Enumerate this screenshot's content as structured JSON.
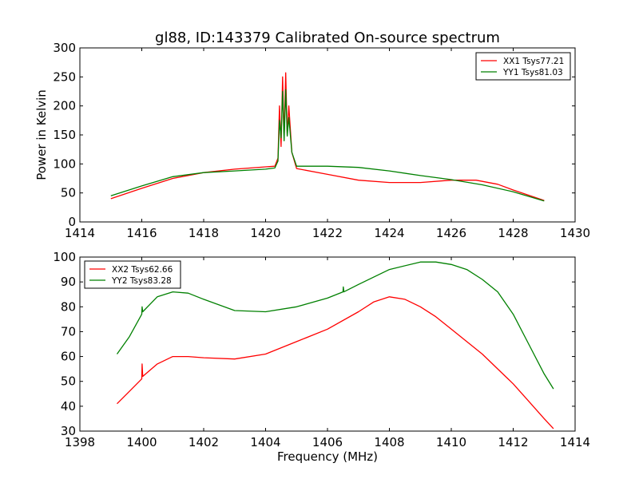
{
  "chart_data": [
    {
      "type": "line",
      "title": "gl88, ID:143379 Calibrated On-source spectrum",
      "xlabel": "",
      "ylabel": "Power in Kelvin",
      "xlim": [
        1414,
        1430
      ],
      "ylim": [
        0,
        300
      ],
      "xticks": [
        "1414",
        "1416",
        "1418",
        "1420",
        "1422",
        "1424",
        "1426",
        "1428",
        "1430"
      ],
      "yticks": [
        "0",
        "50",
        "100",
        "150",
        "200",
        "250",
        "300"
      ],
      "legend_position": "top-right",
      "grid": false,
      "series": [
        {
          "name": "XX1 Tsys77.21",
          "color": "#ff0000",
          "x": [
            1415,
            1416,
            1417,
            1418,
            1419,
            1420,
            1420.3,
            1420.4,
            1420.45,
            1420.5,
            1420.55,
            1420.6,
            1420.65,
            1420.7,
            1420.75,
            1420.85,
            1421,
            1422,
            1423,
            1424,
            1425,
            1426,
            1426.8,
            1427.5,
            1428,
            1429
          ],
          "y": [
            40,
            58,
            75,
            85,
            91,
            95,
            96,
            110,
            200,
            130,
            250,
            145,
            257,
            150,
            200,
            120,
            92,
            82,
            72,
            68,
            68,
            72,
            72,
            65,
            55,
            37
          ]
        },
        {
          "name": "YY1 Tsys81.03",
          "color": "#008000",
          "x": [
            1415,
            1416,
            1417,
            1418,
            1419,
            1420,
            1420.3,
            1420.4,
            1420.45,
            1420.5,
            1420.55,
            1420.6,
            1420.65,
            1420.7,
            1420.75,
            1420.85,
            1421,
            1422,
            1423,
            1424,
            1425,
            1426,
            1427,
            1428,
            1429
          ],
          "y": [
            45,
            62,
            78,
            85,
            88,
            91,
            93,
            105,
            175,
            145,
            225,
            140,
            228,
            148,
            180,
            120,
            96,
            96,
            94,
            88,
            80,
            73,
            64,
            52,
            36
          ]
        }
      ]
    },
    {
      "type": "line",
      "title": "",
      "xlabel": "Frequency (MHz)",
      "ylabel": "",
      "xlim": [
        1398,
        1414
      ],
      "ylim": [
        30,
        100
      ],
      "xticks": [
        "1398",
        "1400",
        "1402",
        "1404",
        "1406",
        "1408",
        "1410",
        "1412",
        "1414"
      ],
      "yticks": [
        "30",
        "40",
        "50",
        "60",
        "70",
        "80",
        "90",
        "100"
      ],
      "legend_position": "top-left",
      "grid": false,
      "series": [
        {
          "name": "XX2 Tsys62.66",
          "color": "#ff0000",
          "x": [
            1399.2,
            1399.6,
            1400,
            1400.01,
            1400.03,
            1400.5,
            1401,
            1401.5,
            1402,
            1403,
            1404,
            1405,
            1406,
            1407,
            1407.5,
            1408,
            1408.5,
            1409,
            1409.5,
            1410,
            1411,
            1412,
            1412.5,
            1413,
            1413.3
          ],
          "y": [
            41,
            46,
            51,
            57,
            52,
            57,
            60,
            60,
            59.5,
            59,
            61,
            66,
            71,
            78,
            82,
            84,
            83,
            80,
            76,
            71,
            61,
            49,
            42,
            35,
            31
          ]
        },
        {
          "name": "YY2 Tsys83.28",
          "color": "#008000",
          "x": [
            1399.2,
            1399.6,
            1400,
            1400.01,
            1400.03,
            1400.5,
            1401,
            1401.5,
            1402,
            1403,
            1404,
            1405,
            1406,
            1406.5,
            1406.51,
            1406.53,
            1407,
            1408,
            1409,
            1409.5,
            1410,
            1410.5,
            1411,
            1411.5,
            1412,
            1412.5,
            1413,
            1413.3
          ],
          "y": [
            61,
            68,
            77,
            80,
            78,
            84,
            86,
            85.5,
            83,
            78.5,
            78,
            80,
            83.5,
            86,
            88,
            86,
            89,
            95,
            98,
            98,
            97,
            95,
            91,
            86,
            77,
            65,
            53,
            47
          ]
        }
      ]
    }
  ]
}
